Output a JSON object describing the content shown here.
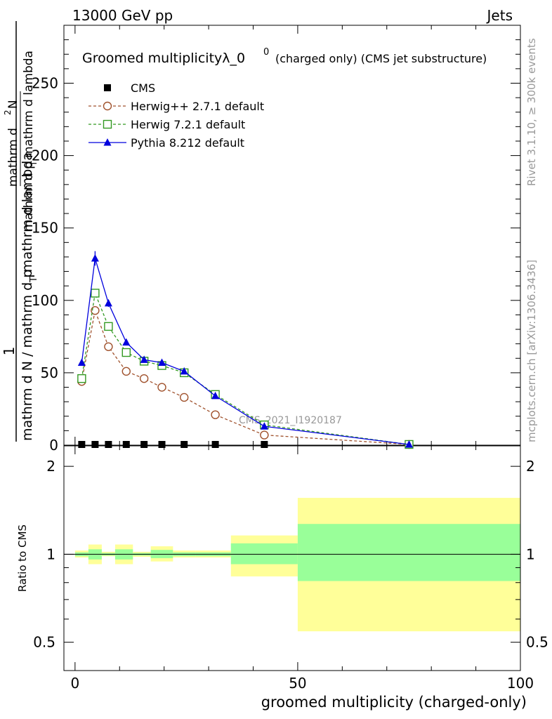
{
  "header": {
    "left": "13000 GeV pp",
    "right": "Jets"
  },
  "side": {
    "rivet": "Rivet 3.1.10, ≥ 300k events",
    "mcplots": "mcplots.cern.ch [arXiv:1306.3436]"
  },
  "chart_data": {
    "type": "line",
    "title_main": "Groomed multiplicityλ_0",
    "title_sup": "0",
    "title_sub": "(charged only) (CMS jet substructure)",
    "analysis_label": "CMS_2021_I1920187",
    "ylabel_top_numerator": "1",
    "ylabel_top_denominator_1": "mathrm d N / mathrm d p",
    "ylabel_top_subscript": "T",
    "ylabel_top_denominator_2": "mathrm d lambda",
    "ylabel_top_frac_num": "mathrm d",
    "ylabel_top_frac_num_sup": "2",
    "ylabel_top_frac_num_N": "N",
    "ylabel_top_frac_den": "mathrm d p",
    "ylabel_top_frac_den_sub": "T",
    "ylabel_top_frac_den_2": "mathrm d lambda",
    "ylabel_bottom": "Ratio to CMS",
    "xlabel": "groomed multiplicity (charged-only)",
    "xlim": [
      -2.5,
      100
    ],
    "ylim": [
      0,
      290
    ],
    "ratio_ylim": [
      0.4,
      2.35
    ],
    "x_ticks": [
      "0",
      "50",
      "100"
    ],
    "x_tick_values": [
      0,
      50,
      100
    ],
    "y_ticks": [
      "0",
      "50",
      "100",
      "150",
      "200",
      "250"
    ],
    "y_tick_values": [
      0,
      50,
      100,
      150,
      200,
      250
    ],
    "ratio_ticks": [
      "0.5",
      "1",
      "2"
    ],
    "ratio_tick_values": [
      0.5,
      1,
      2
    ],
    "x": [
      1.5,
      4.5,
      7.5,
      11.5,
      15.5,
      19.5,
      24.5,
      31.5,
      42.5,
      75
    ],
    "series": [
      {
        "name": "CMS",
        "color": "#000000",
        "marker": "square-filled",
        "values": [
          0,
          0,
          0,
          0,
          0,
          0,
          0,
          0,
          0,
          0
        ]
      },
      {
        "name": "Herwig++ 2.7.1 default",
        "color": "#a0522d",
        "marker": "circle-open",
        "dash": true,
        "values": [
          44,
          93,
          68,
          51,
          46,
          40,
          33,
          21,
          7,
          0.5
        ]
      },
      {
        "name": "Herwig 7.2.1 default",
        "color": "#339922",
        "marker": "square-open",
        "dash": true,
        "values": [
          46,
          105,
          82,
          64,
          58,
          55,
          50,
          35,
          14,
          0.5
        ]
      },
      {
        "name": "Pythia 8.212 default",
        "color": "#0000dd",
        "marker": "triangle-filled",
        "dash": false,
        "values": [
          57,
          129,
          98,
          71,
          59,
          57,
          51,
          34,
          13,
          0.5
        ],
        "errors": [
          2,
          5,
          2.5,
          1.5,
          1.5,
          2,
          1.2,
          1,
          0.6,
          0.2
        ]
      }
    ],
    "ratio_bands": {
      "edges": [
        0,
        3,
        6,
        9,
        13,
        17,
        22,
        27,
        35,
        50,
        100
      ],
      "yellow": [
        [
          0.975,
          1.03
        ],
        [
          0.925,
          1.08
        ],
        [
          0.985,
          1.02
        ],
        [
          0.925,
          1.08
        ],
        [
          0.98,
          1.02
        ],
        [
          0.945,
          1.065
        ],
        [
          0.975,
          1.03
        ],
        [
          0.975,
          1.03
        ],
        [
          0.84,
          1.16
        ],
        [
          0.545,
          1.56
        ]
      ],
      "green": [
        [
          0.985,
          1.015
        ],
        [
          0.96,
          1.04
        ],
        [
          0.99,
          1.01
        ],
        [
          0.96,
          1.04
        ],
        [
          0.99,
          1.01
        ],
        [
          0.97,
          1.035
        ],
        [
          0.985,
          1.015
        ],
        [
          0.985,
          1.015
        ],
        [
          0.925,
          1.09
        ],
        [
          0.81,
          1.27
        ]
      ]
    },
    "legend_position": "top-left",
    "band_colors": {
      "yellow": "#ffff99",
      "green": "#99ff99"
    }
  }
}
